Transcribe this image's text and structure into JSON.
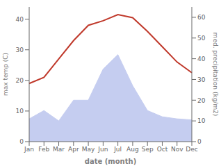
{
  "chart_data": {
    "type": "line",
    "xlabel": "date (month)",
    "ylabel": "max temp (C)",
    "y2label": "med. precipitation (kg/m2)",
    "categories": [
      "Jan",
      "Feb",
      "Mar",
      "Apr",
      "May",
      "Jun",
      "Jul",
      "Aug",
      "Sep",
      "Oct",
      "Nov",
      "Dec"
    ],
    "series": [
      {
        "type": "area",
        "axis": "y2",
        "color": "#c5cdf0",
        "values": [
          11,
          15,
          10,
          20,
          20,
          35,
          42,
          27,
          15,
          12,
          11,
          10.5
        ]
      },
      {
        "type": "line",
        "color": "#c0392b",
        "values": [
          19,
          21,
          27,
          33,
          38,
          39.5,
          41.5,
          40.5,
          36,
          31,
          26,
          22.5
        ]
      }
    ],
    "ylim": [
      0,
      44
    ],
    "yticks": [
      0,
      10,
      20,
      30,
      40
    ],
    "y2lim": [
      0,
      65
    ],
    "y2ticks": [
      0,
      10,
      20,
      30,
      40,
      50,
      60
    ],
    "grid": false
  }
}
